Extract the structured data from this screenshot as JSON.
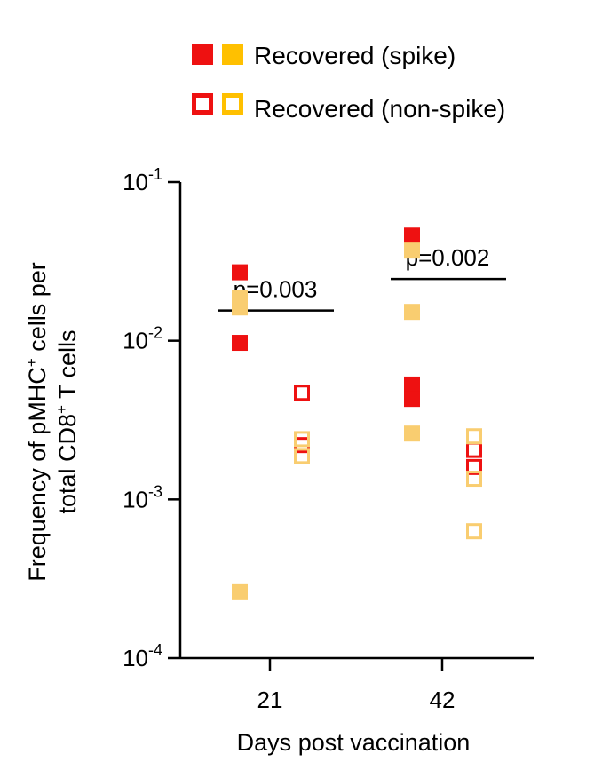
{
  "chart_data": {
    "type": "scatter",
    "ylog": true,
    "ylim": [
      0.0001,
      0.1
    ],
    "yticks": [
      {
        "mantissa": "10",
        "exp": "-1",
        "value": 0.1
      },
      {
        "mantissa": "10",
        "exp": "-2",
        "value": 0.01
      },
      {
        "mantissa": "10",
        "exp": "-3",
        "value": 0.001
      },
      {
        "mantissa": "10",
        "exp": "-4",
        "value": 0.0001
      }
    ],
    "xticks": [
      "21",
      "42"
    ],
    "xlabel": "Days post vaccination",
    "ylabel": {
      "line1_a": "Frequency of pMHC",
      "line1_sup": "+",
      "line1_b": " cells per",
      "line2_a": "total CD8",
      "line2_sup": "+",
      "line2_b": " T cells"
    },
    "legend": [
      {
        "label": "Recovered (spike)",
        "style": "filled"
      },
      {
        "label": "Recovered (non-spike)",
        "style": "open"
      }
    ],
    "colors": {
      "red": "#ee1111",
      "orange": "#ffc000",
      "light_orange": "#f9cd70"
    },
    "groups": [
      {
        "day": "21",
        "type": "spike",
        "points": [
          {
            "value": 0.027,
            "color": "red"
          },
          {
            "value": 0.0097,
            "color": "red"
          },
          {
            "value": 0.0185,
            "color": "light_orange"
          },
          {
            "value": 0.0162,
            "color": "light_orange"
          },
          {
            "value": 0.00026,
            "color": "light_orange"
          }
        ]
      },
      {
        "day": "21",
        "type": "non-spike",
        "points": [
          {
            "value": 0.0047,
            "color": "red"
          },
          {
            "value": 0.0022,
            "color": "red"
          },
          {
            "value": 0.0024,
            "color": "light_orange"
          },
          {
            "value": 0.00188,
            "color": "light_orange"
          }
        ]
      },
      {
        "day": "42",
        "type": "spike",
        "points": [
          {
            "value": 0.046,
            "color": "red"
          },
          {
            "value": 0.0053,
            "color": "red"
          },
          {
            "value": 0.0043,
            "color": "red"
          },
          {
            "value": 0.037,
            "color": "light_orange"
          },
          {
            "value": 0.0152,
            "color": "light_orange"
          },
          {
            "value": 0.0026,
            "color": "light_orange"
          }
        ]
      },
      {
        "day": "42",
        "type": "non-spike",
        "points": [
          {
            "value": 0.00205,
            "color": "red"
          },
          {
            "value": 0.0016,
            "color": "red"
          },
          {
            "value": 0.0025,
            "color": "light_orange"
          },
          {
            "value": 0.00135,
            "color": "light_orange"
          },
          {
            "value": 0.00063,
            "color": "light_orange"
          }
        ]
      }
    ],
    "annotations": [
      {
        "text": "p=0.003",
        "day": "21",
        "bar_value": 0.0155
      },
      {
        "text": "p=0.002",
        "day": "42",
        "bar_value": 0.0245
      }
    ]
  }
}
